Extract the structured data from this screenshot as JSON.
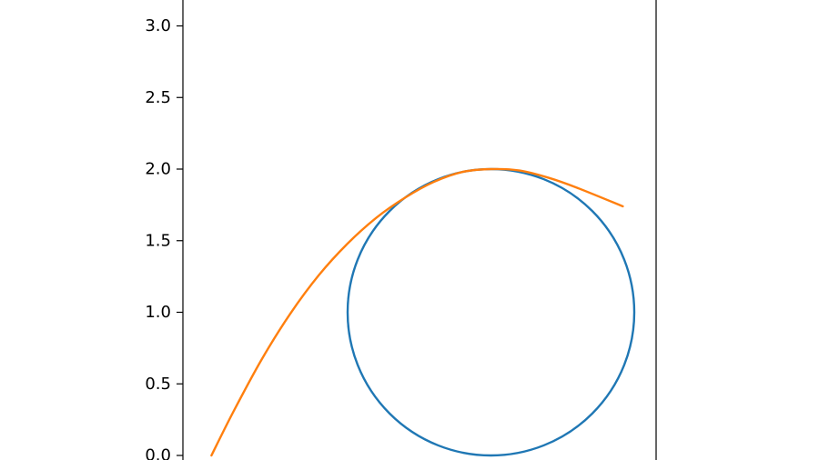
{
  "chart_data": {
    "type": "line",
    "title": "",
    "xlabel": "",
    "ylabel": "",
    "ylim": [
      0.0,
      3.2
    ],
    "xlim": [
      -1.1,
      2.2
    ],
    "grid": false,
    "legend": "none",
    "y_ticks": [
      {
        "value": 0.0,
        "label": "0.0"
      },
      {
        "value": 0.5,
        "label": "0.5"
      },
      {
        "value": 1.0,
        "label": "1.0"
      },
      {
        "value": 1.5,
        "label": "1.5"
      },
      {
        "value": 2.0,
        "label": "2.0"
      },
      {
        "value": 2.5,
        "label": "2.5"
      },
      {
        "value": 3.0,
        "label": "3.0"
      }
    ],
    "series": [
      {
        "kind": "circle",
        "center": [
          1.0,
          1.0
        ],
        "radius": 1.0,
        "color": "#1f77b4"
      },
      {
        "kind": "curve",
        "color": "#ff7f0e",
        "x": [
          -0.95,
          -0.8,
          -0.6,
          -0.4,
          -0.2,
          0.0,
          0.2,
          0.4,
          0.6,
          0.8,
          1.0,
          1.2,
          1.4,
          1.6,
          1.92
        ],
        "y": [
          0.0,
          0.3,
          0.67,
          0.99,
          1.26,
          1.48,
          1.66,
          1.8,
          1.91,
          1.98,
          2.0,
          1.99,
          1.94,
          1.87,
          1.74
        ]
      }
    ]
  }
}
